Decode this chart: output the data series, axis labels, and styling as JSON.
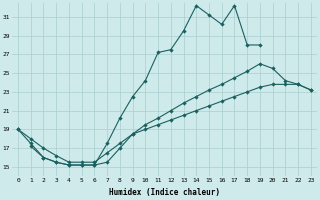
{
  "xlabel": "Humidex (Indice chaleur)",
  "bg_color": "#ceeaea",
  "grid_color": "#aacece",
  "line_color": "#1a6060",
  "xlim": [
    -0.5,
    23.5
  ],
  "ylim": [
    14,
    32.5
  ],
  "yticks": [
    15,
    17,
    19,
    21,
    23,
    25,
    27,
    29,
    31
  ],
  "xticks": [
    0,
    1,
    2,
    3,
    4,
    5,
    6,
    7,
    8,
    9,
    10,
    11,
    12,
    13,
    14,
    15,
    16,
    17,
    18,
    19,
    20,
    21,
    22,
    23
  ],
  "line_peak_x": [
    0,
    1,
    2,
    3,
    4,
    5,
    6,
    7,
    8,
    9,
    10,
    11,
    12,
    13,
    14,
    15,
    16,
    17,
    18,
    19
  ],
  "line_peak_y": [
    19,
    17.5,
    16,
    15.5,
    15.2,
    15.2,
    15.2,
    17.5,
    20.2,
    22.5,
    24.2,
    27.2,
    27.5,
    29.5,
    32.2,
    31.2,
    30.2,
    32.2,
    28.0,
    28.0
  ],
  "line_mid_x": [
    0,
    1,
    2,
    3,
    4,
    5,
    6,
    7,
    8,
    9,
    10,
    11,
    12,
    13,
    14,
    15,
    16,
    17,
    18,
    19,
    20,
    21,
    22,
    23
  ],
  "line_mid_y": [
    19,
    18.0,
    17.0,
    16.2,
    15.5,
    15.5,
    15.5,
    16.5,
    17.5,
    18.5,
    19.0,
    19.5,
    20.0,
    20.5,
    21.0,
    21.5,
    22.0,
    22.5,
    23.0,
    23.5,
    23.8,
    23.8,
    23.8,
    23.2
  ],
  "line_bot_x": [
    1,
    2,
    3,
    4,
    5,
    6,
    7,
    8,
    9,
    10,
    11,
    12,
    13,
    14,
    15,
    16,
    17,
    18,
    19,
    20,
    21,
    22,
    23
  ],
  "line_bot_y": [
    17.2,
    16.0,
    15.5,
    15.2,
    15.2,
    15.2,
    15.5,
    17.0,
    18.5,
    19.5,
    20.2,
    21.0,
    21.8,
    22.5,
    23.2,
    23.8,
    24.5,
    25.2,
    26.0,
    25.5,
    24.2,
    23.8,
    23.2
  ]
}
